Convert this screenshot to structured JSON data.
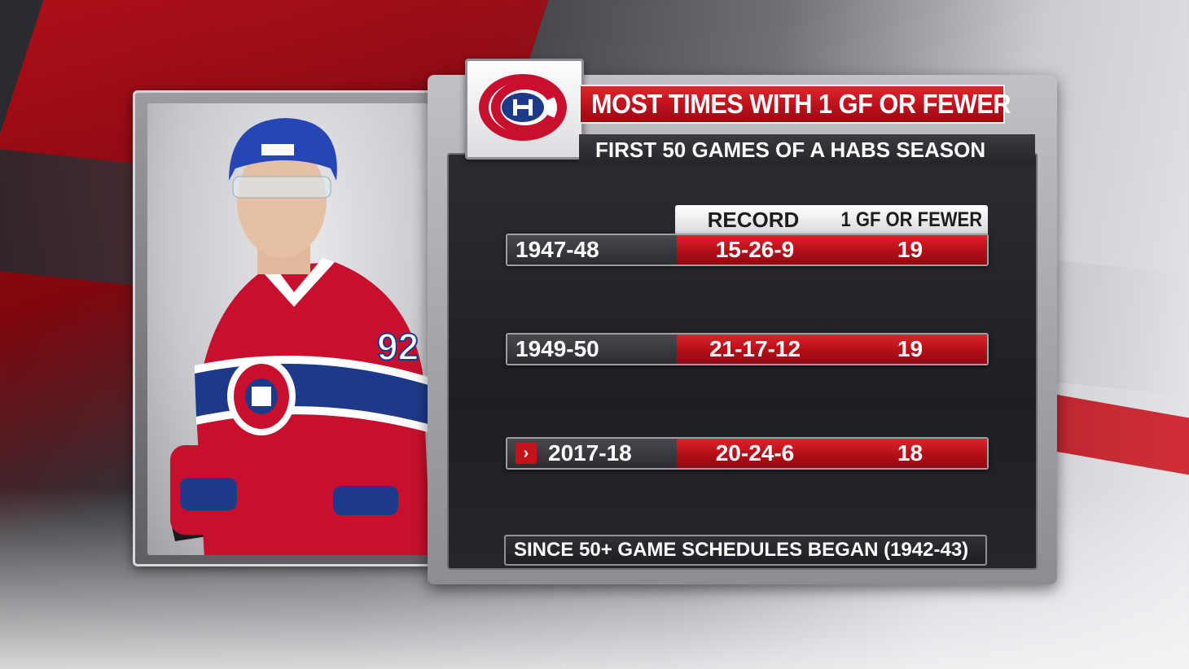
{
  "colors": {
    "accent_red": "#c3121c",
    "panel_dark": "#1e1f23",
    "habs_blue": "#1d3a8a"
  },
  "graphic": {
    "title": "MOST TIMES WITH 1 GF OR FEWER",
    "subtitle": "FIRST 50 GAMES OF A HABS SEASON",
    "logo_icon": "canadiens-logo-icon",
    "player_jersey_number": "92"
  },
  "table": {
    "headers": [
      "RECORD",
      "1 GF OR FEWER"
    ],
    "rows": [
      {
        "season": "1947-48",
        "record": "15-26-9",
        "gf": "19",
        "highlighted": false
      },
      {
        "season": "1949-50",
        "record": "21-17-12",
        "gf": "19",
        "highlighted": false
      },
      {
        "season": "2017-18",
        "record": "20-24-6",
        "gf": "18",
        "highlighted": true
      }
    ],
    "marker_glyph": "›"
  },
  "footer": "SINCE 50+ GAME SCHEDULES BEGAN (1942-43)"
}
